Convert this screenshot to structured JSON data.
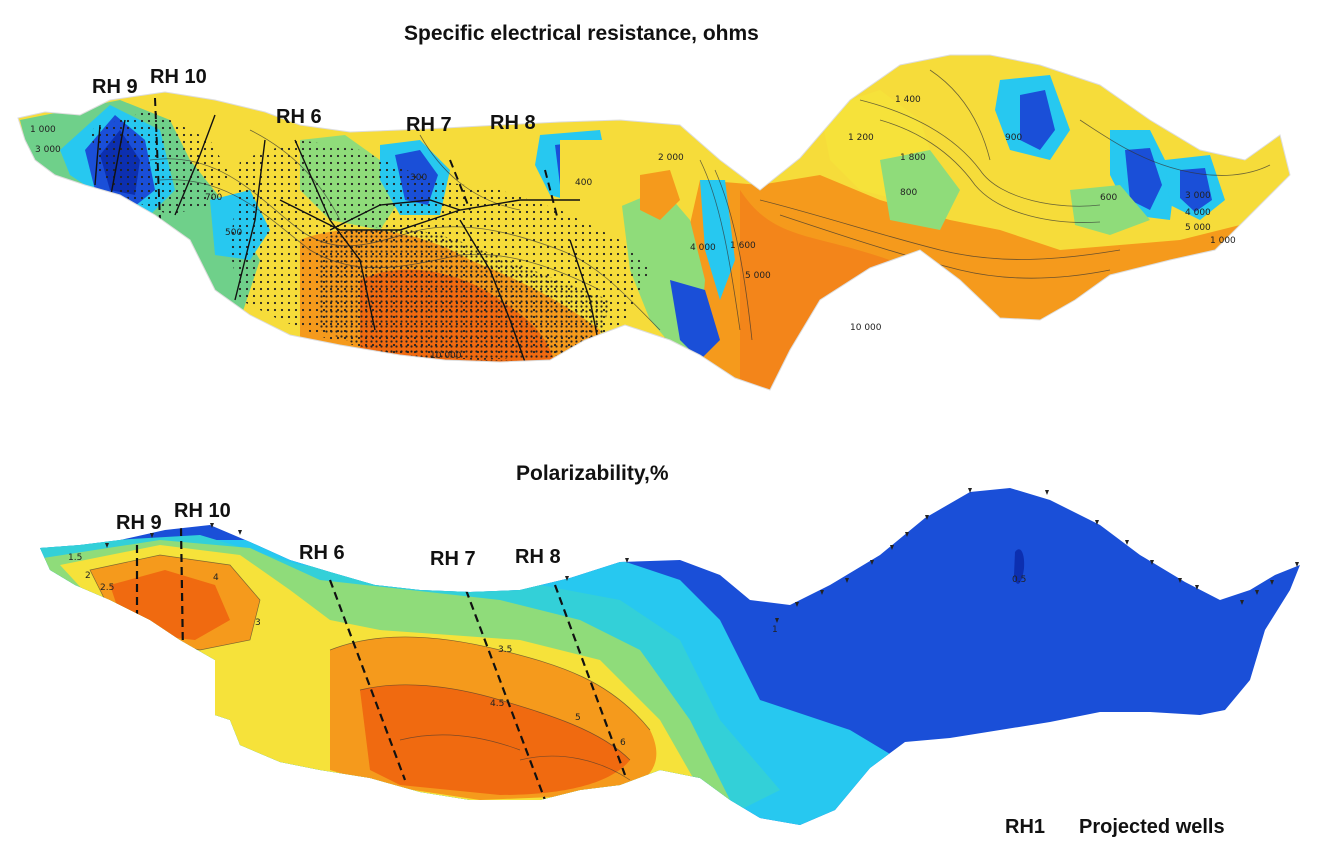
{
  "top_section": {
    "title": "Specific electrical resistance, ohms",
    "wells": [
      {
        "name": "RH 9"
      },
      {
        "name": "RH 10"
      },
      {
        "name": "RH 6"
      },
      {
        "name": "RH 7"
      },
      {
        "name": "RH 8"
      }
    ],
    "contour_labels": [
      "1 000",
      "3 000",
      "2 000",
      "4 000",
      "5 000",
      "10 000",
      "1 400",
      "1 800",
      "1 200",
      "800",
      "900",
      "700",
      "500",
      "400",
      "300",
      "600",
      "1 600",
      "3 000",
      "4 000",
      "5 000",
      "1 000",
      "10 000"
    ]
  },
  "bottom_section": {
    "title": "Polarizability,%",
    "wells": [
      {
        "name": "RH 9"
      },
      {
        "name": "RH 10"
      },
      {
        "name": "RH 6"
      },
      {
        "name": "RH 7"
      },
      {
        "name": "RH 8"
      }
    ],
    "contour_labels": [
      "1.5",
      "2",
      "2.5",
      "3",
      "4",
      "4.5",
      "5",
      "6",
      "3.5",
      "1",
      "0.5"
    ]
  },
  "legend": {
    "symbol_label": "RH1",
    "text": "Projected wells"
  },
  "colors": {
    "low": "#1a4fd8",
    "cyan": "#27c8f0",
    "green": "#8fdc7a",
    "yellow": "#f6e23a",
    "orange": "#f59a1c",
    "red_orange": "#f06a10"
  }
}
